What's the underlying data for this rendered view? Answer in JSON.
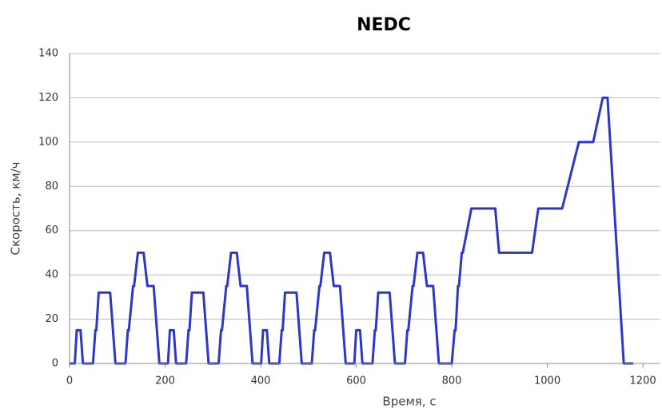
{
  "chart_data": {
    "type": "line",
    "title": "NEDC",
    "x_label": "Время, с",
    "y_label": "Скорость, км/ч",
    "x": [
      0,
      11,
      15,
      23,
      28,
      49,
      54,
      56,
      61,
      85,
      96,
      117,
      122,
      124,
      133,
      135,
      143,
      155,
      163,
      176,
      188,
      195,
      206,
      210,
      218,
      223,
      244,
      249,
      251,
      256,
      280,
      291,
      312,
      317,
      319,
      328,
      330,
      338,
      350,
      358,
      371,
      383,
      390,
      401,
      405,
      413,
      418,
      439,
      444,
      446,
      451,
      475,
      486,
      507,
      512,
      514,
      523,
      525,
      533,
      545,
      553,
      566,
      578,
      585,
      596,
      600,
      608,
      613,
      634,
      639,
      641,
      646,
      670,
      681,
      702,
      707,
      709,
      718,
      720,
      728,
      740,
      748,
      761,
      773,
      780,
      800,
      806,
      808,
      813,
      815,
      821,
      823,
      841,
      891,
      899,
      968,
      981,
      1031,
      1066,
      1096,
      1116,
      1126,
      1160,
      1180
    ],
    "values": [
      0,
      0,
      15,
      15,
      0,
      0,
      15,
      15,
      32,
      32,
      0,
      0,
      15,
      15,
      35,
      35,
      50,
      50,
      35,
      35,
      0,
      0,
      0,
      15,
      15,
      0,
      0,
      15,
      15,
      32,
      32,
      0,
      0,
      15,
      15,
      35,
      35,
      50,
      50,
      35,
      35,
      0,
      0,
      0,
      15,
      15,
      0,
      0,
      15,
      15,
      32,
      32,
      0,
      0,
      15,
      15,
      35,
      35,
      50,
      50,
      35,
      35,
      0,
      0,
      0,
      15,
      15,
      0,
      0,
      15,
      15,
      32,
      32,
      0,
      0,
      15,
      15,
      35,
      35,
      50,
      50,
      35,
      35,
      0,
      0,
      0,
      15,
      15,
      35,
      35,
      50,
      50,
      70,
      70,
      50,
      50,
      70,
      70,
      100,
      100,
      120,
      120,
      0,
      0
    ],
    "color": "#2e36c9",
    "xlim": [
      0,
      1235
    ],
    "xticks": [
      0,
      200,
      400,
      600,
      800,
      1000,
      1200
    ],
    "ylim": [
      0,
      140
    ],
    "yticks": [
      0,
      20,
      40,
      60,
      80,
      100,
      120,
      140
    ],
    "grid": true
  }
}
